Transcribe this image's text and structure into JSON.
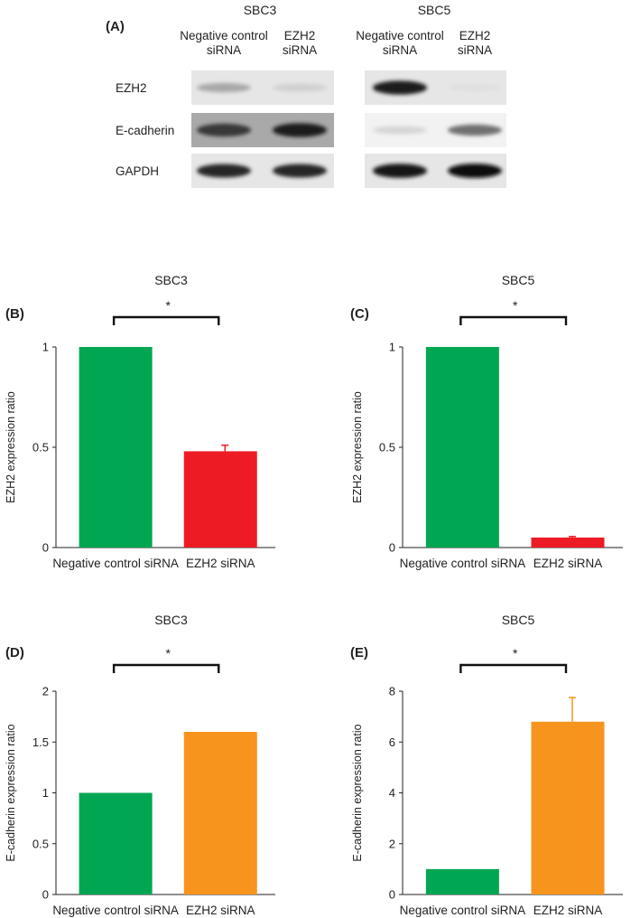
{
  "blot": {
    "panel_label": "(A)",
    "cells": [
      "SBC3",
      "SBC5"
    ],
    "lanes": [
      "Negative control|siRNA",
      "EZH2|siRNA",
      "Negative control|siRNA",
      "EZH2|siRNA"
    ],
    "rows": [
      "EZH2",
      "E-cadherin",
      "GAPDH"
    ],
    "band_intensity": [
      [
        0.3,
        0.12,
        0.92,
        0.05
      ],
      [
        0.8,
        0.92,
        0.1,
        0.55
      ],
      [
        0.88,
        0.88,
        0.95,
        0.98
      ]
    ]
  },
  "colors": {
    "control": "#00a651",
    "ezh2_knockdown": "#ed1c24",
    "ecad_knockdown": "#f7941d",
    "axis": "#222222"
  },
  "chart_data": [
    {
      "panel": "(B)",
      "type": "bar",
      "title": "SBC3",
      "categories": [
        "Negative control siRNA",
        "EZH2 siRNA"
      ],
      "values": [
        1.0,
        0.48
      ],
      "errors": [
        0,
        0.03
      ],
      "ylabel": "EZH2 expression ratio",
      "ylim": [
        0,
        1
      ],
      "yticks": [
        0,
        0.5,
        1
      ],
      "ytick_labels": [
        "0",
        "0.5",
        "1"
      ],
      "colors": [
        "#00a651",
        "#ed1c24"
      ],
      "significance": "*"
    },
    {
      "panel": "(C)",
      "type": "bar",
      "title": "SBC5",
      "categories": [
        "Negative control siRNA",
        "EZH2 siRNA"
      ],
      "values": [
        1.0,
        0.05
      ],
      "errors": [
        0,
        0.005
      ],
      "ylabel": "EZH2 expression ratio",
      "ylim": [
        0,
        1
      ],
      "yticks": [
        0,
        0.5,
        1
      ],
      "ytick_labels": [
        "0",
        "0.5",
        "1"
      ],
      "colors": [
        "#00a651",
        "#ed1c24"
      ],
      "significance": "*"
    },
    {
      "panel": "(D)",
      "type": "bar",
      "title": "SBC3",
      "categories": [
        "Negative control siRNA",
        "EZH2 siRNA"
      ],
      "values": [
        1.0,
        1.6
      ],
      "errors": [
        0,
        0
      ],
      "ylabel": "E-cadherin expression ratio",
      "ylim": [
        0,
        2
      ],
      "yticks": [
        0,
        0.5,
        1,
        1.5,
        2
      ],
      "ytick_labels": [
        "0",
        "0.5",
        "1",
        "1.5",
        "2"
      ],
      "colors": [
        "#00a651",
        "#f7941d"
      ],
      "significance": "*"
    },
    {
      "panel": "(E)",
      "type": "bar",
      "title": "SBC5",
      "categories": [
        "Negative control siRNA",
        "EZH2 siRNA"
      ],
      "values": [
        1.0,
        6.8
      ],
      "errors": [
        0,
        0.95
      ],
      "ylabel": "E-cadherin expression ratio",
      "ylim": [
        0,
        8
      ],
      "yticks": [
        0,
        2,
        4,
        6,
        8
      ],
      "ytick_labels": [
        "0",
        "2",
        "4",
        "6",
        "8"
      ],
      "colors": [
        "#00a651",
        "#f7941d"
      ],
      "significance": "*"
    }
  ]
}
